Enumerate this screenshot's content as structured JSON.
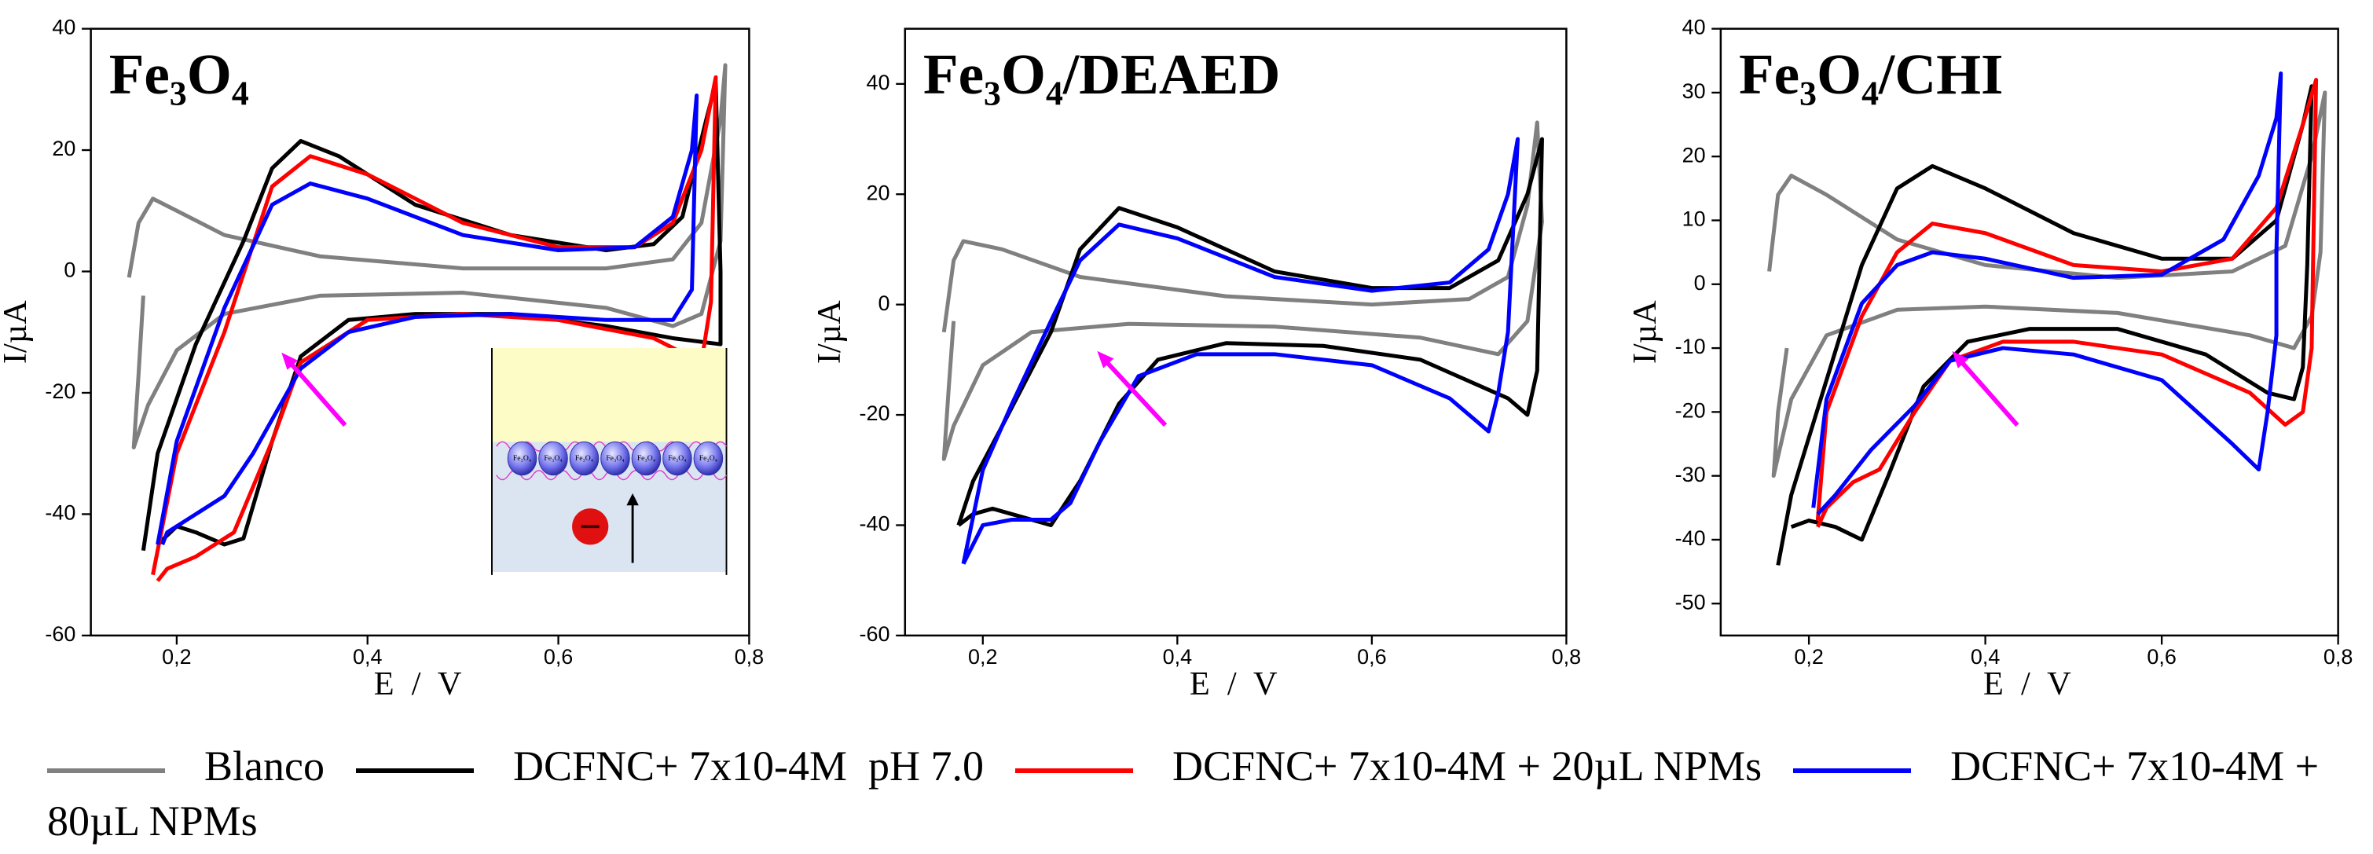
{
  "chart_data": [
    {
      "type": "line",
      "title": "Fe₃O₄",
      "x_label": "E / V",
      "y_label": "I/µA",
      "inset_label": "Fe₃O₄",
      "xlim": [
        0.11,
        0.8
      ],
      "ylim": [
        -60,
        40
      ],
      "xticks": [
        {
          "value": 0.2,
          "label": "0,2"
        },
        {
          "value": 0.4,
          "label": "0,4"
        },
        {
          "value": 0.6,
          "label": "0,6"
        },
        {
          "value": 0.8,
          "label": "0,8"
        }
      ],
      "yticks": [
        -60,
        -40,
        -20,
        0,
        20,
        40
      ],
      "series": [
        {
          "name": "Blanco",
          "color": "#808080",
          "x": [
            0.15,
            0.16,
            0.175,
            0.2,
            0.25,
            0.35,
            0.5,
            0.65,
            0.72,
            0.75,
            0.77,
            0.775,
            0.77,
            0.75,
            0.72,
            0.65,
            0.5,
            0.35,
            0.25,
            0.2,
            0.17,
            0.155,
            0.16,
            0.165
          ],
          "values": [
            -1,
            8,
            12,
            10,
            6,
            2.5,
            0.5,
            0.5,
            2,
            8,
            25,
            34,
            5,
            -7,
            -9,
            -6,
            -3.5,
            -4,
            -7,
            -13,
            -22,
            -29,
            -17,
            -4
          ]
        },
        {
          "name": "DCFNC+ 7x10-4M  pH 7.0",
          "color": "#000000",
          "x": [
            0.165,
            0.18,
            0.22,
            0.27,
            0.3,
            0.33,
            0.37,
            0.45,
            0.55,
            0.65,
            0.7,
            0.73,
            0.755,
            0.765,
            0.77,
            0.77,
            0.72,
            0.65,
            0.55,
            0.45,
            0.38,
            0.33,
            0.3,
            0.27,
            0.25,
            0.22,
            0.2,
            0.18
          ],
          "values": [
            -46,
            -30,
            -12,
            5,
            17,
            21.5,
            19,
            11,
            6,
            3.5,
            4.5,
            9,
            25,
            31,
            0,
            -12,
            -11,
            -9,
            -7,
            -7,
            -8,
            -14,
            -28,
            -44,
            -45,
            -43,
            -42,
            -45
          ]
        },
        {
          "name": "DCFNC+ 7x10-4M + 20µL NPMs",
          "color": "#ff0000",
          "x": [
            0.175,
            0.2,
            0.25,
            0.3,
            0.34,
            0.4,
            0.5,
            0.6,
            0.68,
            0.72,
            0.75,
            0.765,
            0.76,
            0.75,
            0.7,
            0.6,
            0.5,
            0.4,
            0.33,
            0.3,
            0.26,
            0.22,
            0.19,
            0.18
          ],
          "values": [
            -50,
            -30,
            -10,
            14,
            19,
            16,
            8,
            4,
            4,
            8,
            20,
            32,
            -5,
            -15,
            -11,
            -8,
            -7,
            -8,
            -15,
            -28,
            -43,
            -47,
            -49,
            -51
          ]
        },
        {
          "name": "DCFNC+ 7x10-4M + 80µL NPMs",
          "color": "#0000ff",
          "x": [
            0.18,
            0.2,
            0.25,
            0.3,
            0.34,
            0.4,
            0.5,
            0.6,
            0.68,
            0.72,
            0.74,
            0.745,
            0.74,
            0.72,
            0.65,
            0.55,
            0.45,
            0.38,
            0.33,
            0.28,
            0.25,
            0.22,
            0.19,
            0.185
          ],
          "values": [
            -45,
            -28,
            -6,
            11,
            14.5,
            12,
            6,
            3.5,
            4,
            9,
            20,
            29,
            -3,
            -8,
            -8,
            -7,
            -7.5,
            -10,
            -16,
            -30,
            -37,
            -40,
            -43,
            -45
          ]
        }
      ]
    },
    {
      "type": "line",
      "title": "Fe₃O₄/DEAED",
      "x_label": "E / V",
      "y_label": "I/µA",
      "xlim": [
        0.12,
        0.8
      ],
      "ylim": [
        -60,
        50
      ],
      "xticks": [
        {
          "value": 0.2,
          "label": "0,2"
        },
        {
          "value": 0.4,
          "label": "0,4"
        },
        {
          "value": 0.6,
          "label": "0,6"
        },
        {
          "value": 0.8,
          "label": "0,8"
        }
      ],
      "yticks": [
        -60,
        -40,
        -20,
        0,
        20,
        40
      ],
      "series": [
        {
          "color": "#808080",
          "x": [
            0.16,
            0.17,
            0.18,
            0.22,
            0.3,
            0.45,
            0.6,
            0.7,
            0.74,
            0.76,
            0.77,
            0.775,
            0.76,
            0.73,
            0.65,
            0.5,
            0.35,
            0.25,
            0.2,
            0.17,
            0.16,
            0.165,
            0.17
          ],
          "values": [
            -5,
            8,
            11.5,
            10,
            5,
            1.5,
            0,
            1,
            5,
            18,
            33,
            15,
            -3,
            -9,
            -6,
            -4,
            -3.5,
            -5,
            -11,
            -22,
            -28,
            -15,
            -3
          ]
        },
        {
          "color": "#000000",
          "x": [
            0.175,
            0.19,
            0.22,
            0.27,
            0.3,
            0.34,
            0.4,
            0.5,
            0.6,
            0.68,
            0.73,
            0.76,
            0.775,
            0.77,
            0.76,
            0.74,
            0.65,
            0.55,
            0.45,
            0.38,
            0.34,
            0.3,
            0.27,
            0.25,
            0.21,
            0.19,
            0.175
          ],
          "values": [
            -40,
            -32,
            -22,
            -5,
            10,
            17.5,
            14,
            6,
            3,
            3,
            8,
            20,
            30,
            -12,
            -20,
            -17,
            -10,
            -7.5,
            -7,
            -10,
            -18,
            -32,
            -40,
            -39,
            -37,
            -38,
            -40
          ]
        },
        {
          "color": "#0000ff",
          "x": [
            0.18,
            0.2,
            0.23,
            0.27,
            0.3,
            0.34,
            0.4,
            0.5,
            0.6,
            0.68,
            0.72,
            0.74,
            0.75,
            0.74,
            0.73,
            0.72,
            0.68,
            0.6,
            0.5,
            0.42,
            0.36,
            0.32,
            0.29,
            0.27,
            0.23,
            0.2,
            0.18
          ],
          "values": [
            -47,
            -30,
            -18,
            -3,
            8,
            14.5,
            12,
            5,
            2.5,
            4,
            10,
            20,
            30,
            -5,
            -16,
            -23,
            -17,
            -11,
            -9,
            -9,
            -13,
            -25,
            -36,
            -39,
            -39,
            -40,
            -47
          ]
        }
      ]
    },
    {
      "type": "line",
      "title": "Fe₃O₄/CHI",
      "x_label": "E / V",
      "y_label": "I/µA",
      "xlim": [
        0.1,
        0.8
      ],
      "ylim": [
        -55,
        40
      ],
      "xticks": [
        {
          "value": 0.2,
          "label": "0,2"
        },
        {
          "value": 0.4,
          "label": "0,4"
        },
        {
          "value": 0.6,
          "label": "0,6"
        },
        {
          "value": 0.8,
          "label": "0,8"
        }
      ],
      "yticks": [
        -50,
        -40,
        -30,
        -20,
        -10,
        0,
        10,
        20,
        30,
        40
      ],
      "series": [
        {
          "color": "#808080",
          "x": [
            0.155,
            0.165,
            0.18,
            0.22,
            0.3,
            0.4,
            0.55,
            0.68,
            0.74,
            0.77,
            0.785,
            0.78,
            0.77,
            0.75,
            0.7,
            0.55,
            0.4,
            0.3,
            0.22,
            0.18,
            0.16,
            0.165,
            0.175
          ],
          "values": [
            2,
            14,
            17,
            14,
            7,
            3,
            1,
            2,
            6,
            20,
            30,
            5,
            -5,
            -10,
            -8,
            -4.5,
            -3.5,
            -4,
            -8,
            -18,
            -30,
            -20,
            -10
          ]
        },
        {
          "color": "#000000",
          "x": [
            0.165,
            0.18,
            0.22,
            0.26,
            0.3,
            0.34,
            0.4,
            0.5,
            0.6,
            0.68,
            0.73,
            0.76,
            0.77,
            0.765,
            0.76,
            0.75,
            0.72,
            0.65,
            0.55,
            0.45,
            0.38,
            0.33,
            0.29,
            0.26,
            0.23,
            0.2,
            0.18
          ],
          "values": [
            -44,
            -33,
            -15,
            3,
            15,
            18.5,
            15,
            8,
            4,
            4,
            10,
            25,
            31,
            3,
            -13,
            -18,
            -17,
            -11,
            -7,
            -7,
            -9,
            -16,
            -30,
            -40,
            -38,
            -37,
            -38
          ]
        },
        {
          "color": "#ff0000",
          "x": [
            0.21,
            0.22,
            0.26,
            0.3,
            0.34,
            0.4,
            0.5,
            0.6,
            0.68,
            0.73,
            0.76,
            0.775,
            0.77,
            0.76,
            0.74,
            0.7,
            0.6,
            0.5,
            0.42,
            0.36,
            0.32,
            0.28,
            0.25,
            0.22,
            0.21
          ],
          "values": [
            -37,
            -20,
            -5,
            5,
            9.5,
            8,
            3,
            2,
            4,
            12,
            25,
            32,
            -10,
            -20,
            -22,
            -17,
            -11,
            -9,
            -9,
            -12,
            -20,
            -29,
            -31,
            -35,
            -38
          ]
        },
        {
          "color": "#0000ff",
          "x": [
            0.205,
            0.22,
            0.26,
            0.3,
            0.34,
            0.4,
            0.5,
            0.6,
            0.67,
            0.71,
            0.73,
            0.735,
            0.73,
            0.73,
            0.72,
            0.71,
            0.68,
            0.6,
            0.5,
            0.42,
            0.36,
            0.32,
            0.27,
            0.23,
            0.21
          ],
          "values": [
            -35,
            -18,
            -3,
            3,
            5,
            4,
            1,
            1.5,
            7,
            17,
            26,
            33,
            5,
            -8,
            -20,
            -29,
            -25,
            -15,
            -11,
            -10,
            -12,
            -19,
            -26,
            -33,
            -36
          ]
        }
      ]
    }
  ]
}
